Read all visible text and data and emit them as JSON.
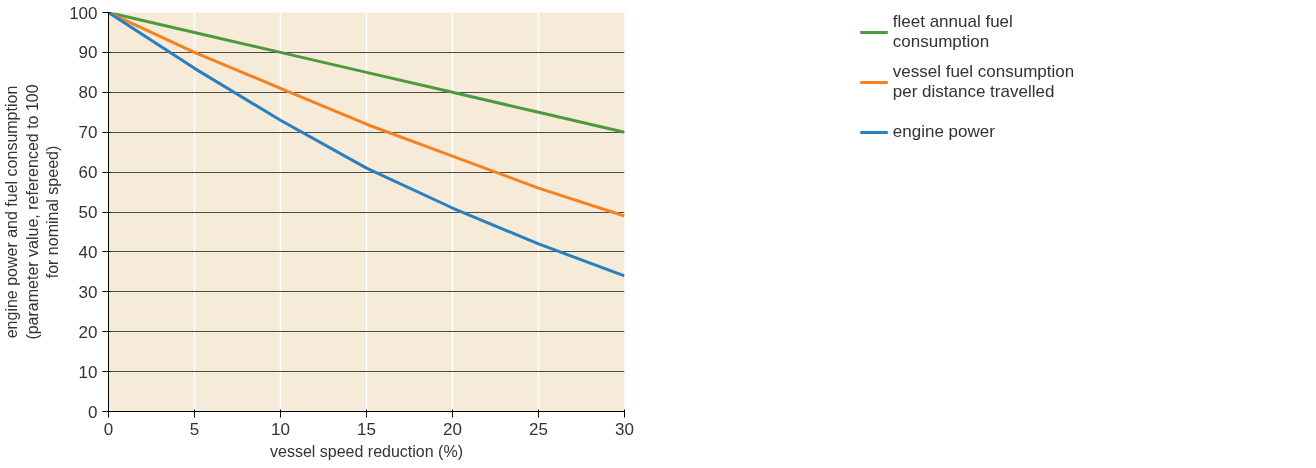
{
  "chart_data": {
    "type": "line",
    "xlabel": "vessel speed reduction (%)",
    "ylabel": "engine power and fuel consumption (parameter value, referenced to 100 for nominal speed)",
    "x": [
      0,
      5,
      10,
      15,
      20,
      25,
      30
    ],
    "series": [
      {
        "name": "fleet annual fuel consumption",
        "color": "#4c9a3f",
        "values": [
          100,
          95,
          90,
          85,
          80,
          75,
          70
        ]
      },
      {
        "name": "vessel fuel consumption per distance travelled",
        "color": "#f58220",
        "values": [
          100,
          90,
          81,
          72,
          64,
          56,
          49
        ]
      },
      {
        "name": "engine power",
        "color": "#2a7fc1",
        "values": [
          100,
          86,
          73,
          61,
          51,
          42,
          34
        ]
      }
    ],
    "xlim": [
      0,
      30
    ],
    "ylim": [
      0,
      100
    ],
    "xticks": [
      0,
      5,
      10,
      15,
      20,
      25,
      30
    ],
    "yticks": [
      0,
      10,
      20,
      30,
      40,
      50,
      60,
      70,
      80,
      90,
      100
    ],
    "grid": true,
    "legend": "top right",
    "marker": "none",
    "line_style": "solid"
  }
}
